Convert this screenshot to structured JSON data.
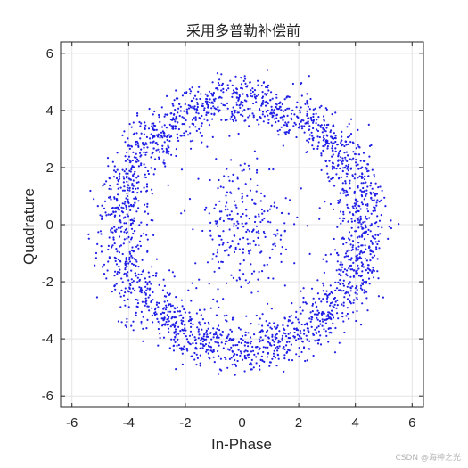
{
  "chart_data": {
    "type": "scatter",
    "title": "采用多普勒补偿前",
    "xlabel": "In-Phase",
    "ylabel": "Quadrature",
    "xlim": [
      -6.4,
      6.4
    ],
    "ylim": [
      -6.4,
      6.4
    ],
    "xticks": [
      -6,
      -4,
      -2,
      0,
      2,
      4,
      6
    ],
    "yticks": [
      -6,
      -4,
      -2,
      0,
      2,
      4,
      6
    ],
    "xtick_labels": [
      "-6",
      "-4",
      "-2",
      "0",
      "2",
      "4",
      "6"
    ],
    "ytick_labels": [
      "-6",
      "-4",
      "-2",
      "0",
      "2",
      "4",
      "6"
    ],
    "grid": true,
    "marker_color": "#1f1fe6",
    "distribution": {
      "ring_points": 2400,
      "ring_radius_mean": 4.3,
      "ring_radius_spread": 0.75,
      "center_points": 260,
      "center_spread": 1.25
    }
  },
  "watermark": "CSDN @海神之光"
}
